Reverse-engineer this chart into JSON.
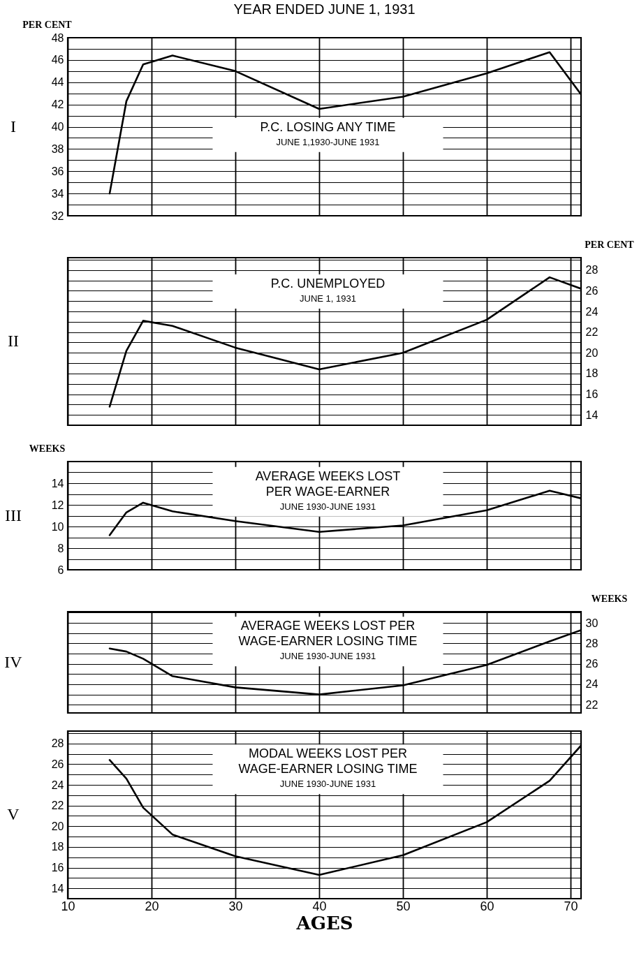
{
  "chart_data": [
    {
      "type": "line",
      "title": "YEAR ENDED JUNE 1, 1931",
      "ylabel": "PER CENT",
      "annotations": [
        "I",
        "P.C. LOSING ANY TIME",
        "JUNE 1,1930-JUNE 1931"
      ],
      "x": [
        15,
        17,
        19,
        22.5,
        30,
        40,
        50,
        60,
        67.5,
        71.25
      ],
      "series": [
        {
          "color": "#000000",
          "values": [
            34,
            42.3,
            45.6,
            46.4,
            45.0,
            41.6,
            42.7,
            44.8,
            46.7,
            42.9
          ]
        }
      ],
      "xlim": [
        10,
        71.25
      ],
      "xticks": [
        10,
        20,
        30,
        40,
        50,
        60,
        70
      ],
      "ylim": [
        32,
        48
      ],
      "yticks": [
        32,
        {
          "value": 33,
          "label": null
        },
        34,
        {
          "value": 35,
          "label": null
        },
        36,
        {
          "value": 37,
          "label": null
        },
        38,
        {
          "value": 39,
          "label": null
        },
        40,
        {
          "value": 41,
          "label": null
        },
        42,
        {
          "value": 43,
          "label": null
        },
        44,
        {
          "value": 45,
          "label": null
        },
        46,
        {
          "value": 47,
          "label": null
        },
        48
      ],
      "grid": true,
      "tick_labels": "y",
      "marker": "none",
      "line_style": "solid"
    },
    {
      "type": "line",
      "y2label": "PER CENT",
      "annotations": [
        "II",
        "P.C. UNEMPLOYED",
        "JUNE 1, 1931"
      ],
      "x": [
        15,
        17,
        19,
        22.5,
        30,
        40,
        50,
        60,
        67.5,
        71.25
      ],
      "series": [
        {
          "color": "#000000",
          "axis": "y2",
          "values": [
            14.8,
            20.2,
            23.1,
            22.6,
            20.5,
            18.4,
            20.0,
            23.2,
            27.3,
            26.2
          ]
        }
      ],
      "xlim": [
        10,
        71.25
      ],
      "xticks": [
        10,
        20,
        30,
        40,
        50,
        60,
        70
      ],
      "y2lim": [
        13,
        29.2
      ],
      "y2ticks": [
        {
          "value": 13,
          "label": null
        },
        14,
        {
          "value": 15,
          "label": null
        },
        16,
        {
          "value": 17,
          "label": null
        },
        18,
        {
          "value": 19,
          "label": null
        },
        20,
        {
          "value": 21,
          "label": null
        },
        22,
        {
          "value": 23,
          "label": null
        },
        24,
        {
          "value": 25,
          "label": null
        },
        26,
        {
          "value": 27,
          "label": null
        },
        28,
        {
          "value": 29,
          "label": null
        }
      ],
      "grid": true,
      "tick_labels": "y",
      "marker": "none",
      "line_style": "solid"
    },
    {
      "type": "line",
      "ylabel": "WEEKS",
      "annotations": [
        "III",
        "AVERAGE WEEKS LOST",
        "PER WAGE-EARNER",
        "JUNE 1930-JUNE 1931"
      ],
      "x": [
        15,
        17,
        19,
        22.5,
        30,
        40,
        50,
        60,
        67.5,
        71.25
      ],
      "series": [
        {
          "color": "#000000",
          "values": [
            9.2,
            11.3,
            12.2,
            11.4,
            10.5,
            9.5,
            10.1,
            11.5,
            13.3,
            12.6
          ]
        }
      ],
      "xlim": [
        10,
        71.25
      ],
      "xticks": [
        10,
        20,
        30,
        40,
        50,
        60,
        70
      ],
      "ylim": [
        6,
        16
      ],
      "yticks": [
        6,
        {
          "value": 7,
          "label": null
        },
        8,
        {
          "value": 9,
          "label": null
        },
        10,
        {
          "value": 11,
          "label": null
        },
        12,
        {
          "value": 13,
          "label": null
        },
        14,
        {
          "value": 15,
          "label": null
        }
      ],
      "grid": true,
      "tick_labels": "y",
      "marker": "none",
      "line_style": "solid"
    },
    {
      "type": "line",
      "y2label": "WEEKS",
      "annotations": [
        "IV",
        "AVERAGE WEEKS LOST PER",
        "WAGE-EARNER LOSING TIME",
        "JUNE 1930-JUNE 1931"
      ],
      "x": [
        15,
        17,
        19,
        22.5,
        30,
        40,
        50,
        60,
        67.5,
        71.25
      ],
      "series": [
        {
          "color": "#000000",
          "axis": "y2",
          "values": [
            27.5,
            27.2,
            26.5,
            24.8,
            23.7,
            23.0,
            23.9,
            25.9,
            28.2,
            29.3
          ]
        }
      ],
      "xlim": [
        10,
        71.25
      ],
      "xticks": [
        10,
        20,
        30,
        40,
        50,
        60,
        70
      ],
      "y2lim": [
        21.2,
        31.1
      ],
      "y2ticks": [
        22,
        {
          "value": 23,
          "label": null
        },
        24,
        {
          "value": 25,
          "label": null
        },
        26,
        {
          "value": 27,
          "label": null
        },
        28,
        {
          "value": 29,
          "label": null
        },
        30,
        {
          "value": 31,
          "label": null
        }
      ],
      "grid": true,
      "tick_labels": "y",
      "marker": "none",
      "line_style": "solid"
    },
    {
      "type": "line",
      "xlabel": "AGES",
      "annotations": [
        "V",
        "MODAL WEEKS LOST PER",
        "WAGE-EARNER LOSING TIME",
        "JUNE 1930-JUNE 1931"
      ],
      "x": [
        15,
        17,
        19,
        22.5,
        30,
        40,
        50,
        60,
        67.5,
        71.25
      ],
      "series": [
        {
          "color": "#000000",
          "values": [
            26.4,
            24.6,
            21.8,
            19.2,
            17.1,
            15.3,
            17.2,
            20.4,
            24.4,
            27.8
          ]
        }
      ],
      "xlim": [
        10,
        71.25
      ],
      "xticks": [
        10,
        20,
        30,
        40,
        50,
        60,
        70
      ],
      "ylim": [
        13,
        29.2
      ],
      "yticks": [
        {
          "value": 13,
          "label": null
        },
        14,
        {
          "value": 15,
          "label": null
        },
        16,
        {
          "value": 17,
          "label": null
        },
        18,
        {
          "value": 19,
          "label": null
        },
        20,
        {
          "value": 21,
          "label": null
        },
        22,
        {
          "value": 23,
          "label": null
        },
        24,
        {
          "value": 25,
          "label": null
        },
        26,
        {
          "value": 27,
          "label": null
        },
        28,
        {
          "value": 29,
          "label": null
        }
      ],
      "grid": true,
      "marker": "none",
      "line_style": "solid"
    }
  ]
}
